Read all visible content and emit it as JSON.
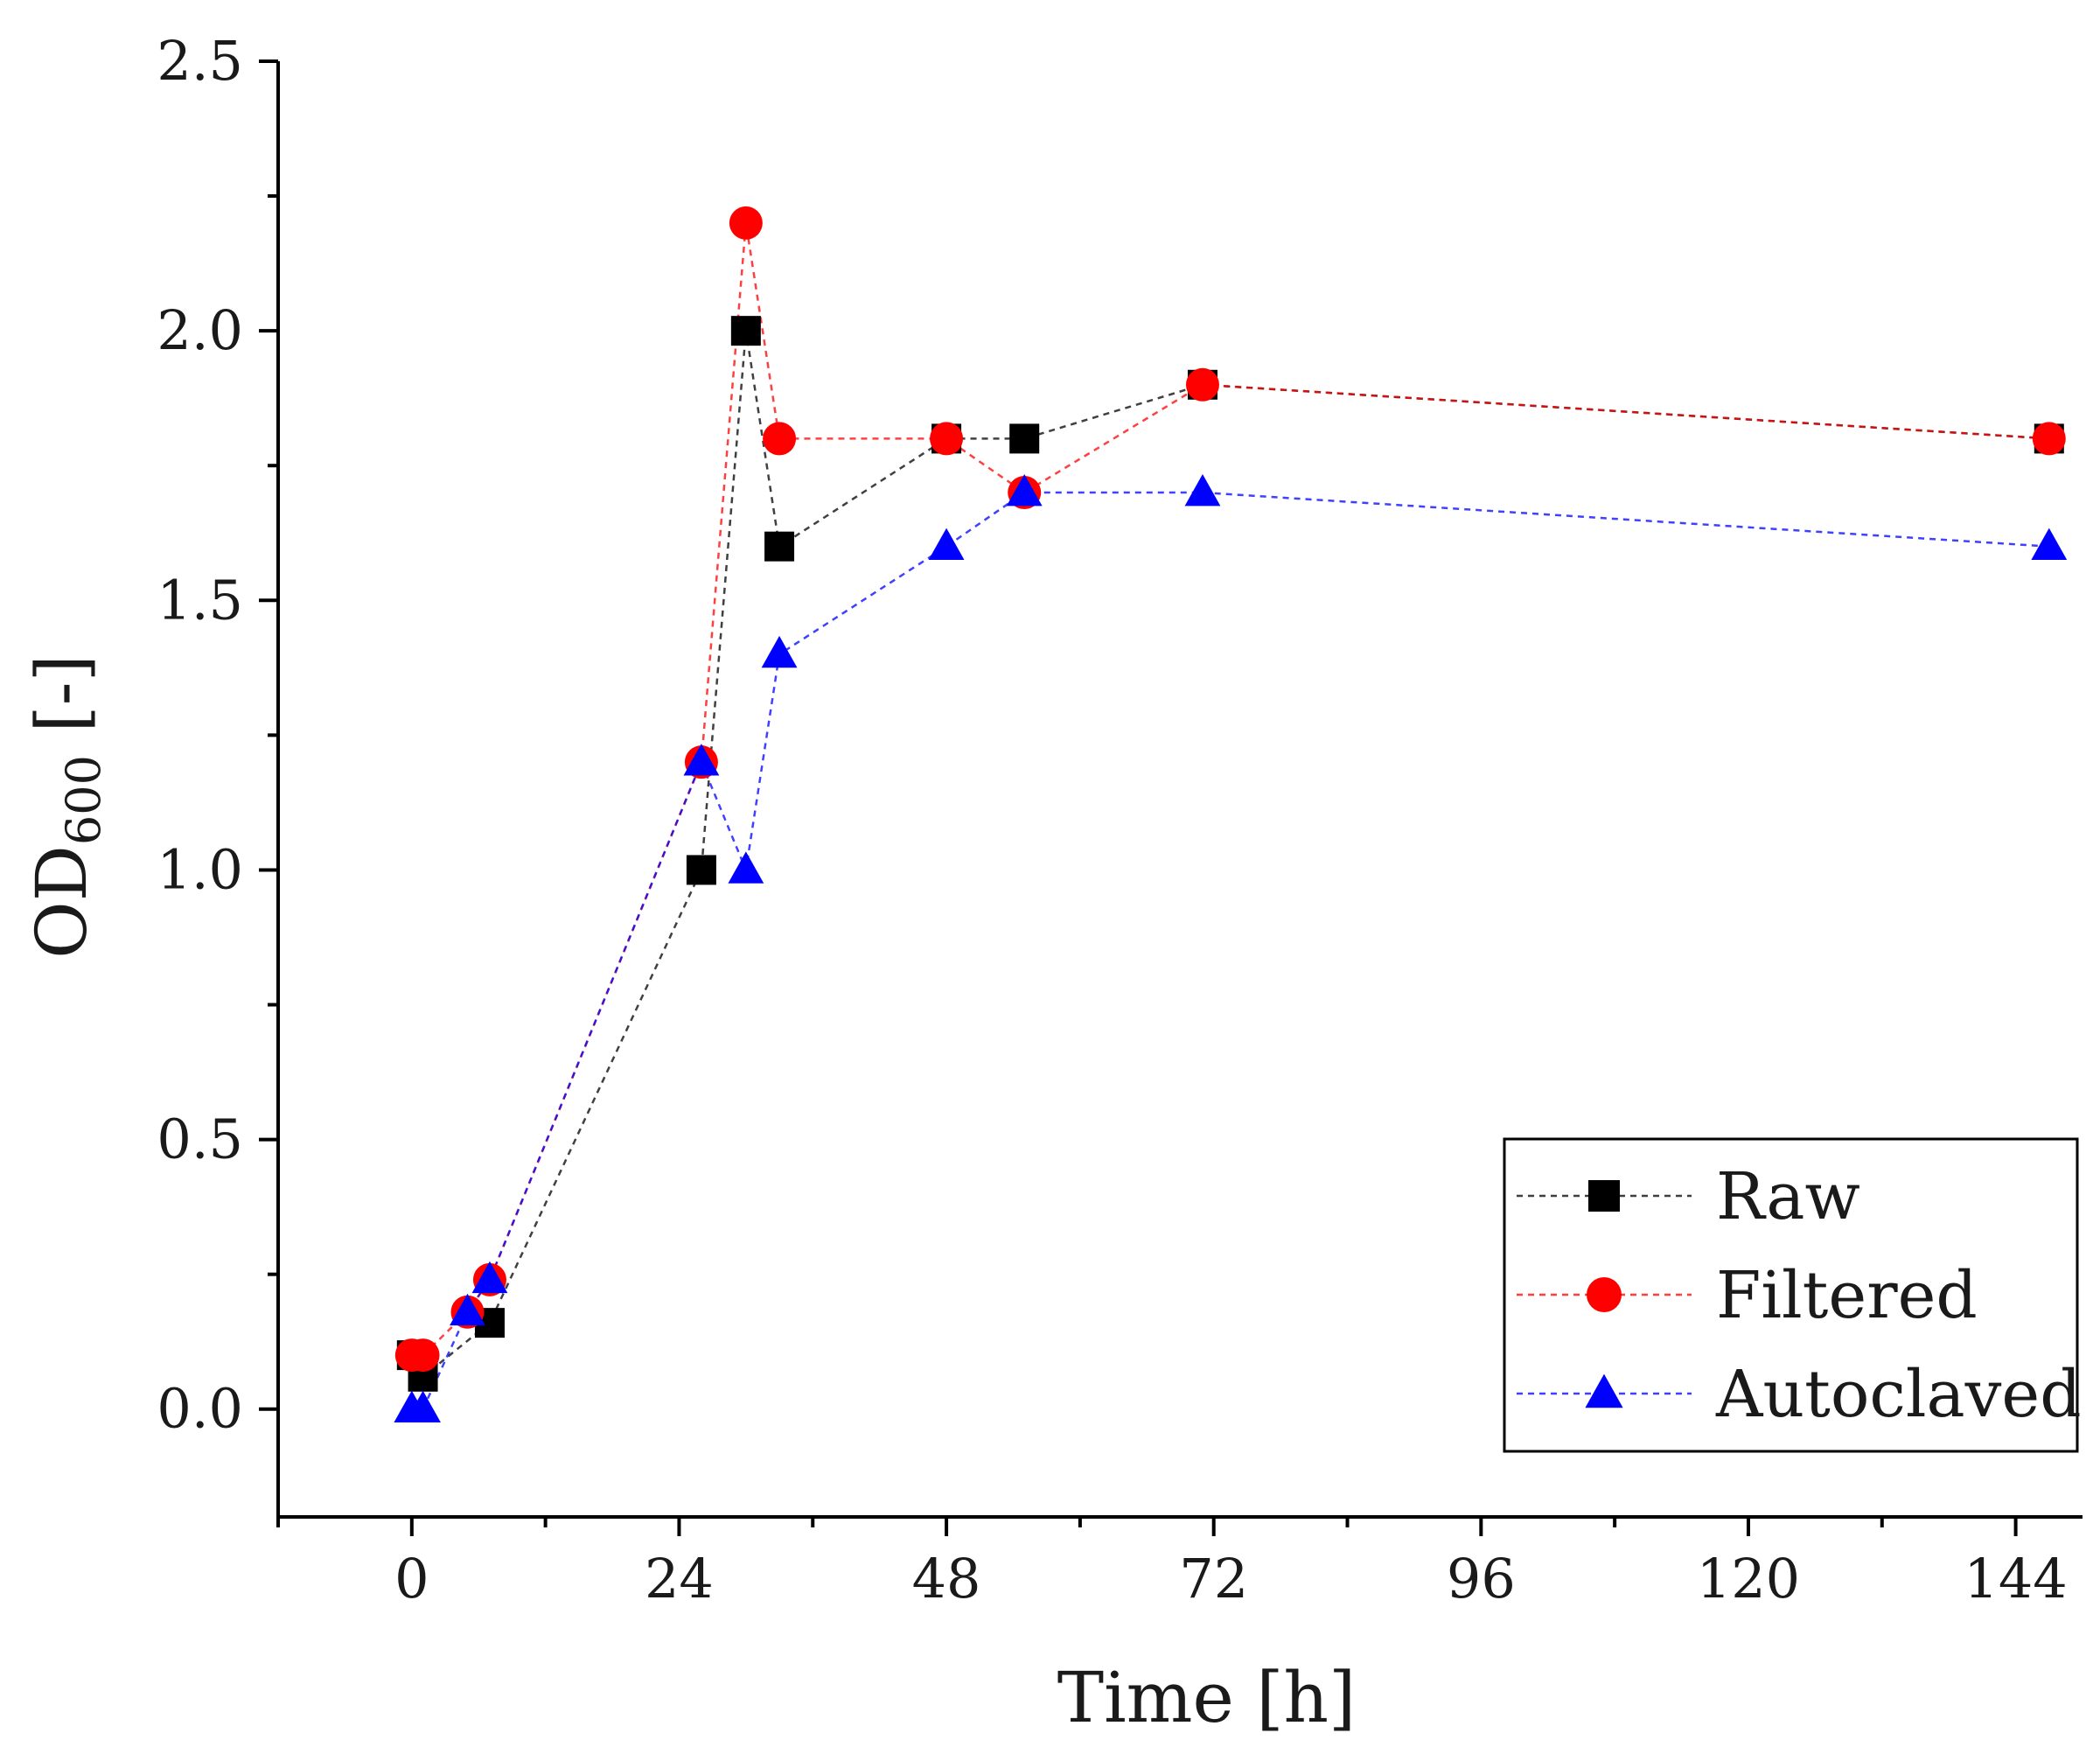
{
  "chart_data": {
    "type": "line",
    "xlabel": "Time [h]",
    "ylabel": {
      "main": "OD",
      "subscript": "600",
      "suffix": " [-]"
    },
    "xlim": [
      -12,
      150
    ],
    "ylim": [
      -0.2,
      2.5
    ],
    "xticks": [
      0,
      24,
      48,
      72,
      96,
      120,
      144
    ],
    "xtick_labels": [
      "0",
      "24",
      "48",
      "72",
      "96",
      "120",
      "144"
    ],
    "yticks": [
      0.0,
      0.5,
      1.0,
      1.5,
      2.0,
      2.5
    ],
    "ytick_labels": [
      "0.0",
      "0.5",
      "1.0",
      "1.5",
      "2.0",
      "2.5"
    ],
    "x_minor_step": 12,
    "y_minor_step": 0.25,
    "grid": false,
    "legend_position": "bottom-right",
    "series": [
      {
        "name": "Raw",
        "marker": "square",
        "color": "#000000",
        "line_color": "#000000",
        "x": [
          0,
          1,
          7,
          26,
          30,
          33,
          48,
          55,
          71,
          147
        ],
        "y": [
          0.1,
          0.06,
          0.16,
          1.0,
          2.0,
          1.6,
          1.8,
          1.8,
          1.9,
          1.8
        ]
      },
      {
        "name": "Filtered",
        "marker": "circle",
        "color": "#ff0000",
        "line_color": "#ff0000",
        "x": [
          0,
          1,
          5,
          7,
          26,
          30,
          33,
          48,
          55,
          71,
          147
        ],
        "y": [
          0.1,
          0.1,
          0.18,
          0.24,
          1.2,
          2.2,
          1.8,
          1.8,
          1.7,
          1.9,
          1.8
        ]
      },
      {
        "name": "Autoclaved",
        "marker": "triangle",
        "color": "#0000ff",
        "line_color": "#0000ff",
        "x": [
          0,
          1,
          5,
          7,
          26,
          30,
          33,
          48,
          55,
          71,
          147
        ],
        "y": [
          0.0,
          0.0,
          0.18,
          0.24,
          1.2,
          1.0,
          1.4,
          1.6,
          1.7,
          1.7,
          1.6
        ]
      }
    ]
  }
}
